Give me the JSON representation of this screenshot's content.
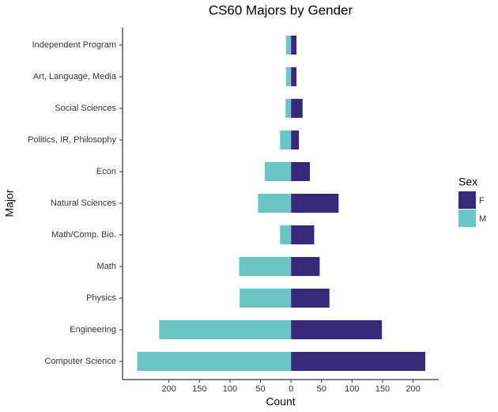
{
  "chart_data": {
    "type": "bar",
    "orientation": "horizontal",
    "title": "CS60 Majors by Gender",
    "x_label": "Count",
    "y_label": "Major",
    "legend_title": "Sex",
    "legend_position": "right",
    "categories": [
      "Independent Program",
      "Art, Language, Media",
      "Social Sciences",
      "Politics, IR, Philosophy",
      "Econ",
      "Natural Sciences",
      "Math/Comp. Bio.",
      "Math",
      "Physics",
      "Engineering",
      "Computer Science"
    ],
    "series": [
      {
        "name": "F",
        "color": "#372a7a",
        "values": [
          9,
          9,
          19,
          13,
          31,
          78,
          38,
          47,
          63,
          149,
          220
        ]
      },
      {
        "name": "M",
        "color": "#6cc5c5",
        "values": [
          -8,
          -8,
          -9,
          -18,
          -43,
          -54,
          -18,
          -85,
          -84,
          -216,
          -252
        ]
      }
    ],
    "xlim": [
      -276,
      242
    ],
    "xticks": [
      {
        "value": -200,
        "label": "200"
      },
      {
        "value": -150,
        "label": "150"
      },
      {
        "value": -100,
        "label": "100"
      },
      {
        "value": -50,
        "label": "50"
      },
      0,
      50,
      100,
      150,
      200
    ],
    "grid": false
  }
}
